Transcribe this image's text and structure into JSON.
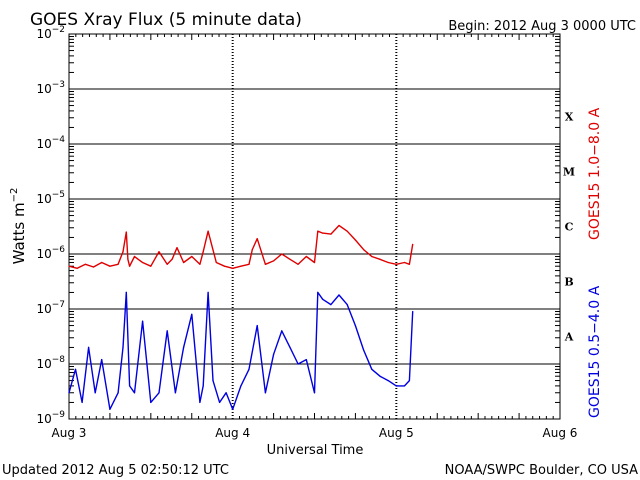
{
  "header": {
    "title": "GOES Xray Flux (5 minute data)",
    "begin": "Begin:  2012 Aug 3 0000 UTC"
  },
  "footer": {
    "updated": "Updated 2012 Aug  5 02:50:12 UTC",
    "source": "NOAA/SWPC Boulder, CO USA"
  },
  "colors": {
    "long_channel": "#e00000",
    "short_channel": "#0000e0",
    "grid": "#000000"
  },
  "chart_data": {
    "type": "line",
    "title": "GOES Xray Flux (5 minute data)",
    "xlabel": "Universal Time",
    "ylabel": "Watts m^-2",
    "ylabel_base": "Watts m",
    "ylabel_exp": "−2",
    "y_scale": "log",
    "ylim": [
      1e-09,
      0.01
    ],
    "xlim_days": [
      0,
      3
    ],
    "x_ticks": [
      {
        "day": 0,
        "label": "Aug 3"
      },
      {
        "day": 1,
        "label": "Aug 4"
      },
      {
        "day": 2,
        "label": "Aug 5"
      },
      {
        "day": 3,
        "label": "Aug 6"
      }
    ],
    "y_ticks": [
      {
        "exp": -2,
        "label": "10",
        "sup": "−2"
      },
      {
        "exp": -3,
        "label": "10",
        "sup": "−3"
      },
      {
        "exp": -4,
        "label": "10",
        "sup": "−4"
      },
      {
        "exp": -5,
        "label": "10",
        "sup": "−5"
      },
      {
        "exp": -6,
        "label": "10",
        "sup": "−6"
      },
      {
        "exp": -7,
        "label": "10",
        "sup": "−7"
      },
      {
        "exp": -8,
        "label": "10",
        "sup": "−8"
      },
      {
        "exp": -9,
        "label": "10",
        "sup": "−9"
      }
    ],
    "flare_classes": [
      {
        "label": "X",
        "exp_center": -3.5
      },
      {
        "label": "M",
        "exp_center": -4.5
      },
      {
        "label": "C",
        "exp_center": -5.5
      },
      {
        "label": "B",
        "exp_center": -6.5
      },
      {
        "label": "A",
        "exp_center": -7.5
      }
    ],
    "legend": [
      {
        "name": "GOES15 1.0−8.0 A",
        "color": "#e00000"
      },
      {
        "name": "GOES15 0.5−4.0 A",
        "color": "#0000e0"
      }
    ],
    "series": [
      {
        "name": "GOES15 1.0−8.0 A",
        "color": "#e00000",
        "x_days": [
          0.0,
          0.05,
          0.1,
          0.15,
          0.2,
          0.25,
          0.3,
          0.33,
          0.35,
          0.36,
          0.37,
          0.4,
          0.45,
          0.5,
          0.55,
          0.6,
          0.63,
          0.66,
          0.7,
          0.75,
          0.8,
          0.82,
          0.85,
          0.9,
          0.95,
          1.0,
          1.05,
          1.1,
          1.12,
          1.15,
          1.2,
          1.25,
          1.3,
          1.35,
          1.4,
          1.45,
          1.5,
          1.52,
          1.55,
          1.6,
          1.65,
          1.7,
          1.75,
          1.8,
          1.85,
          1.9,
          1.95,
          2.0,
          2.05,
          2.08,
          2.1
        ],
        "y": [
          6e-07,
          5.5e-07,
          6.5e-07,
          5.8e-07,
          7e-07,
          6e-07,
          6.5e-07,
          1.1e-06,
          2.5e-06,
          8e-07,
          6e-07,
          9e-07,
          7e-07,
          6e-07,
          1.1e-06,
          6.5e-07,
          8e-07,
          1.3e-06,
          7e-07,
          9e-07,
          6.5e-07,
          1.1e-06,
          2.6e-06,
          7e-07,
          6e-07,
          5.5e-07,
          6e-07,
          6.5e-07,
          1.2e-06,
          1.9e-06,
          6.5e-07,
          7.5e-07,
          1e-06,
          8e-07,
          6.5e-07,
          9e-07,
          7e-07,
          2.6e-06,
          2.4e-06,
          2.3e-06,
          3.3e-06,
          2.6e-06,
          1.8e-06,
          1.2e-06,
          9e-07,
          8e-07,
          7e-07,
          6.5e-07,
          7e-07,
          6.5e-07,
          1.5e-06
        ]
      },
      {
        "name": "GOES15 0.5−4.0 A",
        "color": "#0000e0",
        "x_days": [
          0.0,
          0.04,
          0.08,
          0.12,
          0.16,
          0.2,
          0.25,
          0.3,
          0.33,
          0.35,
          0.37,
          0.4,
          0.45,
          0.5,
          0.55,
          0.6,
          0.65,
          0.7,
          0.75,
          0.8,
          0.82,
          0.85,
          0.88,
          0.92,
          0.96,
          1.0,
          1.05,
          1.1,
          1.15,
          1.2,
          1.25,
          1.3,
          1.35,
          1.4,
          1.45,
          1.5,
          1.52,
          1.55,
          1.6,
          1.65,
          1.7,
          1.75,
          1.8,
          1.85,
          1.9,
          1.95,
          2.0,
          2.05,
          2.08,
          2.1
        ],
        "y": [
          3e-09,
          8e-09,
          2e-09,
          2e-08,
          3e-09,
          1.2e-08,
          1.5e-09,
          3e-09,
          2e-08,
          2e-07,
          4e-09,
          3e-09,
          6e-08,
          2e-09,
          3e-09,
          4e-08,
          3e-09,
          2e-08,
          8e-08,
          2e-09,
          4e-09,
          2e-07,
          5e-09,
          2e-09,
          3e-09,
          1.5e-09,
          4e-09,
          8e-09,
          5e-08,
          3e-09,
          1.5e-08,
          4e-08,
          2e-08,
          1e-08,
          1.2e-08,
          3e-09,
          2e-07,
          1.5e-07,
          1.2e-07,
          1.8e-07,
          1.2e-07,
          5e-08,
          1.8e-08,
          8e-09,
          6e-09,
          5e-09,
          4e-09,
          4e-09,
          5e-09,
          9e-08
        ]
      }
    ]
  }
}
